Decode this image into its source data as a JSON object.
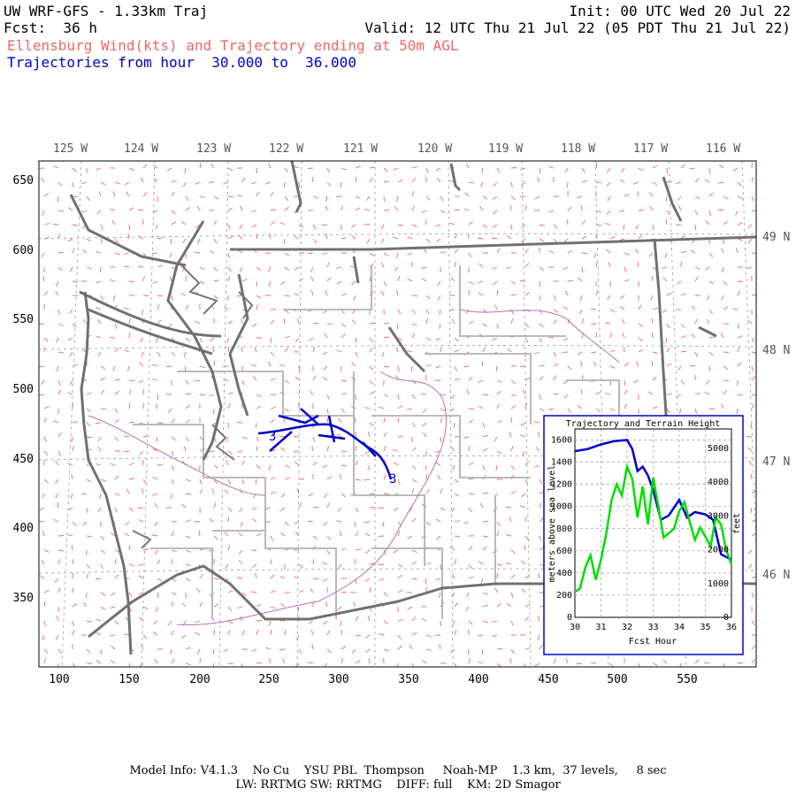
{
  "header": {
    "model_title": "UW WRF-GFS - 1.33km Traj",
    "init": "Init: 00 UTC Wed 20 Jul 22",
    "fcst": "Fcst:  36 h",
    "valid": "Valid: 12 UTC Thu 21 Jul 22 (05 PDT Thu 21 Jul 22)",
    "product": "Ellensburg Wind(kts) and Trajectory ending at 50m AGL",
    "traj_hours": "Trajectories from hour  30.000 to  36.000"
  },
  "map": {
    "lon_labels": [
      "125 W",
      "124 W",
      "123 W",
      "122 W",
      "121 W",
      "120 W",
      "119 W",
      "118 W",
      "117 W",
      "116 W"
    ],
    "lat_labels": [
      "49 N",
      "48 N",
      "47 N",
      "46 N"
    ],
    "y_ticks": [
      "650",
      "600",
      "550",
      "500",
      "450",
      "400",
      "350"
    ],
    "x_ticks": [
      "100",
      "150",
      "200",
      "250",
      "300",
      "350",
      "400",
      "450",
      "500",
      "550"
    ],
    "traj_markers": [
      "3",
      "3"
    ],
    "colors": {
      "border": "#707070",
      "county": "#b0b0b0",
      "wind": "#ee6666",
      "traj": "#0000cc",
      "river": "#b070c0"
    }
  },
  "inset": {
    "title": "Trajectory and Terrain Height",
    "ylabel_left": "meters above sea level",
    "ylabel_right": "feet",
    "xlabel": "Fcst Hour",
    "y_ticks_m": [
      "0",
      "200",
      "400",
      "600",
      "800",
      "1000",
      "1200",
      "1400",
      "1600"
    ],
    "y_ticks_ft": [
      "0",
      "1000",
      "2000",
      "3000",
      "4000",
      "5000"
    ],
    "x_ticks": [
      "30",
      "31",
      "32",
      "33",
      "34",
      "35",
      "36"
    ]
  },
  "chart_data": {
    "type": "line",
    "title": "Trajectory and Terrain Height",
    "xlabel": "Fcst Hour",
    "ylabel": "meters above sea level",
    "xlim": [
      30,
      36
    ],
    "ylim": [
      0,
      1700
    ],
    "grid": true,
    "series": [
      {
        "color": "#0000cc",
        "x": [
          30,
          30.5,
          31,
          31.5,
          32,
          32.2,
          32.4,
          32.6,
          32.8,
          33,
          33.3,
          33.6,
          34,
          34.3,
          34.6,
          35,
          35.3,
          35.6,
          36
        ],
        "values": [
          1500,
          1520,
          1560,
          1590,
          1600,
          1520,
          1320,
          1360,
          1280,
          1150,
          880,
          920,
          1060,
          900,
          950,
          930,
          880,
          570,
          520
        ]
      },
      {
        "color": "#00dd00",
        "x": [
          30,
          30.2,
          30.4,
          30.6,
          30.8,
          31,
          31.2,
          31.4,
          31.6,
          31.8,
          32,
          32.2,
          32.4,
          32.6,
          32.8,
          33,
          33.2,
          33.4,
          33.6,
          33.8,
          34,
          34.2,
          34.4,
          34.6,
          34.8,
          35,
          35.2,
          35.4,
          35.6,
          35.8,
          36
        ],
        "values": [
          230,
          260,
          450,
          560,
          340,
          520,
          750,
          1050,
          1200,
          1100,
          1360,
          1250,
          900,
          1180,
          840,
          1260,
          1000,
          720,
          760,
          800,
          960,
          1040,
          860,
          700,
          810,
          730,
          640,
          900,
          840,
          610,
          480
        ]
      }
    ]
  }
}
